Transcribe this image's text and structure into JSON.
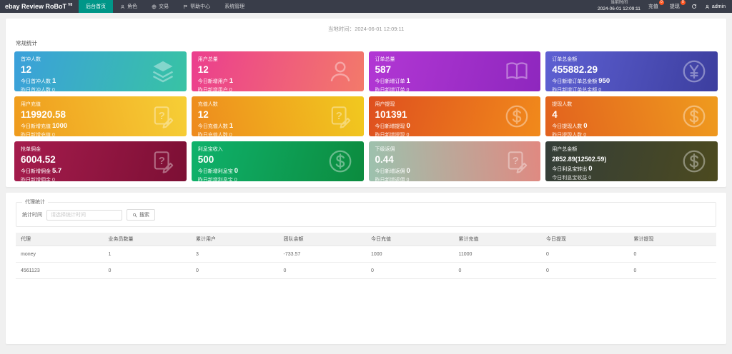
{
  "colors": {
    "navbar_bg": "#393D49",
    "accent": "#009688",
    "badge": "#FF5722"
  },
  "navbar": {
    "brand": "ebay Review RoBoT",
    "brand_sup": "V8",
    "menu": [
      {
        "label": "后台首页",
        "icon": null,
        "active": true
      },
      {
        "label": "角色",
        "icon": "person-icon",
        "active": false
      },
      {
        "label": "交易",
        "icon": "globe-icon",
        "active": false
      },
      {
        "label": "帮助中心",
        "icon": "flag-icon",
        "active": false
      },
      {
        "label": "系统管理",
        "icon": null,
        "active": false
      }
    ],
    "time_label": "当前时间",
    "time_value": "2024-06-01 12:09:11",
    "actions": [
      {
        "label": "充值",
        "badge": "0"
      },
      {
        "label": "提现",
        "badge": "0"
      }
    ],
    "username": "admin"
  },
  "main": {
    "local_time_label": "当地时间：",
    "local_time_value": "2024-06-01 12:09:11",
    "stats_title": "常规统计",
    "cards": [
      {
        "title": "首冲人数",
        "value": "12",
        "today_label": "今日首冲人数",
        "today_value": "1",
        "yesterday_label": "昨日首冲人数",
        "yesterday_value": "0",
        "icon": "layers-icon",
        "gradient": [
          "#3BA0DB",
          "#38C3A4"
        ],
        "angle": 105
      },
      {
        "title": "用户总量",
        "value": "12",
        "today_label": "今日新增用户",
        "today_value": "1",
        "yesterday_label": "昨日新增用户",
        "yesterday_value": "0",
        "icon": "user-icon",
        "gradient": [
          "#EB3E8E",
          "#F37A6A"
        ],
        "angle": 105
      },
      {
        "title": "订单总量",
        "value": "587",
        "today_label": "今日新增订单",
        "today_value": "1",
        "yesterday_label": "昨日新增订单",
        "yesterday_value": "0",
        "icon": "book-icon",
        "gradient": [
          "#B237D4",
          "#8E27BE"
        ],
        "angle": 105
      },
      {
        "title": "订单总金额",
        "value": "455882.29",
        "today_label": "今日新增订单总金额",
        "today_value": "950",
        "yesterday_label": "昨日新增订单总金额",
        "yesterday_value": "0",
        "icon": "yen-icon",
        "gradient": [
          "#5E60D3",
          "#3C3E9E"
        ],
        "angle": 105
      },
      {
        "title": "用户充值",
        "value": "119920.58",
        "today_label": "今日新增充值",
        "today_value": "1000",
        "yesterday_label": "昨日新增充值",
        "yesterday_value": "0",
        "icon": "edit-doc-icon",
        "gradient": [
          "#EF9B1D",
          "#F6CF36"
        ],
        "angle": 75
      },
      {
        "title": "充值人数",
        "value": "12",
        "today_label": "今日充值人数",
        "today_value": "1",
        "yesterday_label": "昨日充值人数",
        "yesterday_value": "0",
        "icon": "edit-doc-icon",
        "gradient": [
          "#EE8A1E",
          "#F1C91F"
        ],
        "angle": 75
      },
      {
        "title": "用户提现",
        "value": "101391",
        "today_label": "今日新增提现",
        "today_value": "0",
        "yesterday_label": "昨日新增提现",
        "yesterday_value": "0",
        "icon": "dollar-icon",
        "gradient": [
          "#DE4F1F",
          "#F18A1B"
        ],
        "angle": 105
      },
      {
        "title": "提现人数",
        "value": "4",
        "today_label": "今日提现人数",
        "today_value": "0",
        "yesterday_label": "昨日提现人数",
        "yesterday_value": "0",
        "icon": "dollar-icon",
        "gradient": [
          "#E2611E",
          "#EF9B1E"
        ],
        "angle": 75
      },
      {
        "title": "抢单佣金",
        "value": "6004.52",
        "today_label": "今日新增佣金",
        "today_value": "5.7",
        "yesterday_label": "昨日新增佣金",
        "yesterday_value": "0",
        "icon": "edit-doc-icon",
        "gradient": [
          "#A51C4D",
          "#7C0F34"
        ],
        "angle": 105
      },
      {
        "title": "利息宝收入",
        "value": "500",
        "today_label": "今日新增利息宝",
        "today_value": "0",
        "yesterday_label": "昨日新增利息宝",
        "yesterday_value": "0",
        "icon": "dollar-icon",
        "gradient": [
          "#0FB26C",
          "#0C8B3E"
        ],
        "angle": 105
      },
      {
        "title": "下级返佣",
        "value": "0.44",
        "today_label": "今日新增返佣",
        "today_value": "0",
        "yesterday_label": "昨日新增返佣",
        "yesterday_value": "0",
        "icon": "edit-doc-icon",
        "gradient": [
          "#9CC2AE",
          "#E08981"
        ],
        "angle": 85
      },
      {
        "title": "用户总金额",
        "value": "2852.89(12502.59)",
        "today_label": "今日利息宝转出",
        "today_value": "0",
        "yesterday_label": "今日利息宝收益",
        "yesterday_value": "0",
        "icon": "dollar-icon",
        "gradient": [
          "#343E39",
          "#4C4A1F"
        ],
        "angle": 105,
        "value_small": true
      }
    ],
    "agent": {
      "legend": "代理统计",
      "time_label": "统计时间",
      "time_placeholder": "请选择统计时间",
      "search_label": "搜索"
    },
    "table": {
      "headers": [
        "代理",
        "业务员数量",
        "累计用户",
        "团队余额",
        "今日充值",
        "累计充值",
        "今日提现",
        "累计提现"
      ],
      "rows": [
        [
          "money",
          "1",
          "3",
          "-733.57",
          "1000",
          "11000",
          "0",
          "0"
        ],
        [
          "4561123",
          "0",
          "0",
          "0",
          "0",
          "0",
          "0",
          "0"
        ]
      ]
    }
  }
}
